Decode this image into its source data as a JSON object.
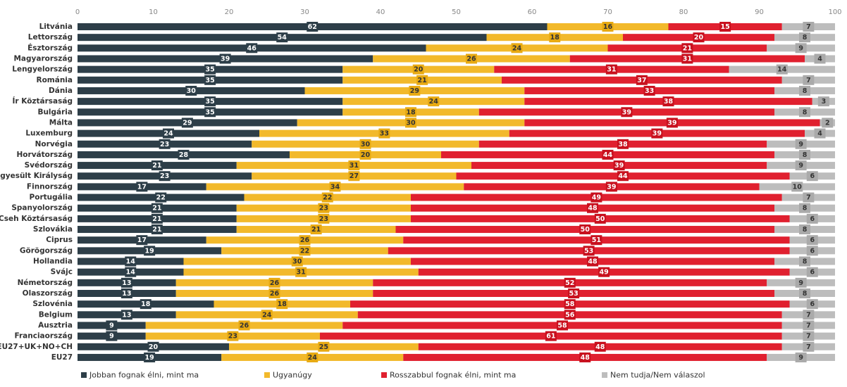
{
  "chart_data": {
    "type": "stacked-bar-horizontal",
    "categories": [
      "Litvánia",
      "Lettország",
      "Észtország",
      "Magyarország",
      "Lengyelország",
      "Románia",
      "Dánia",
      "Ír Köztársaság",
      "Bulgária",
      "Málta",
      "Luxemburg",
      "Norvégia",
      "Horvátország",
      "Svédország",
      "Egyesült Királyság",
      "Finnország",
      "Portugália",
      "Spanyolország",
      "Cseh Köztársaság",
      "Szlovákia",
      "Ciprus",
      "Görögország",
      "Hollandia",
      "Svájc",
      "Németország",
      "Olaszország",
      "Szlovénia",
      "Belgium",
      "Ausztria",
      "Franciaország",
      "EU27+UK+NO+CH",
      "EU27"
    ],
    "series": [
      {
        "name": "Jobban fognak élni, mint ma",
        "color": "#2d3e48",
        "values": [
          62,
          54,
          46,
          39,
          35,
          35,
          30,
          35,
          35,
          29,
          24,
          23,
          28,
          21,
          23,
          17,
          22,
          21,
          21,
          21,
          17,
          19,
          14,
          14,
          13,
          13,
          18,
          13,
          9,
          9,
          20,
          19
        ]
      },
      {
        "name": "Ugyanúgy",
        "color": "#f2b92b",
        "values": [
          16,
          18,
          24,
          26,
          20,
          21,
          29,
          24,
          18,
          30,
          33,
          30,
          20,
          31,
          27,
          34,
          22,
          23,
          23,
          21,
          26,
          22,
          30,
          31,
          26,
          26,
          18,
          24,
          26,
          23,
          25,
          24
        ]
      },
      {
        "name": "Rosszabbul fognak élni, mint ma",
        "color": "#e0202f",
        "values": [
          15,
          20,
          21,
          31,
          31,
          37,
          33,
          38,
          39,
          39,
          39,
          38,
          44,
          39,
          44,
          39,
          49,
          48,
          50,
          50,
          51,
          53,
          48,
          49,
          52,
          53,
          58,
          56,
          58,
          61,
          48,
          48
        ]
      },
      {
        "name": "Nem tudja/Nem válaszol",
        "color": "#bdbdbd",
        "values": [
          7,
          8,
          9,
          4,
          14,
          7,
          8,
          3,
          8,
          2,
          4,
          9,
          8,
          9,
          6,
          10,
          7,
          8,
          6,
          8,
          6,
          6,
          8,
          6,
          9,
          8,
          6,
          7,
          7,
          7,
          7,
          9
        ]
      }
    ],
    "xlim": [
      0,
      100
    ],
    "xticks": [
      0,
      10,
      20,
      30,
      40,
      50,
      60,
      70,
      80,
      90,
      100
    ],
    "grid": false,
    "legend": "bottom"
  }
}
